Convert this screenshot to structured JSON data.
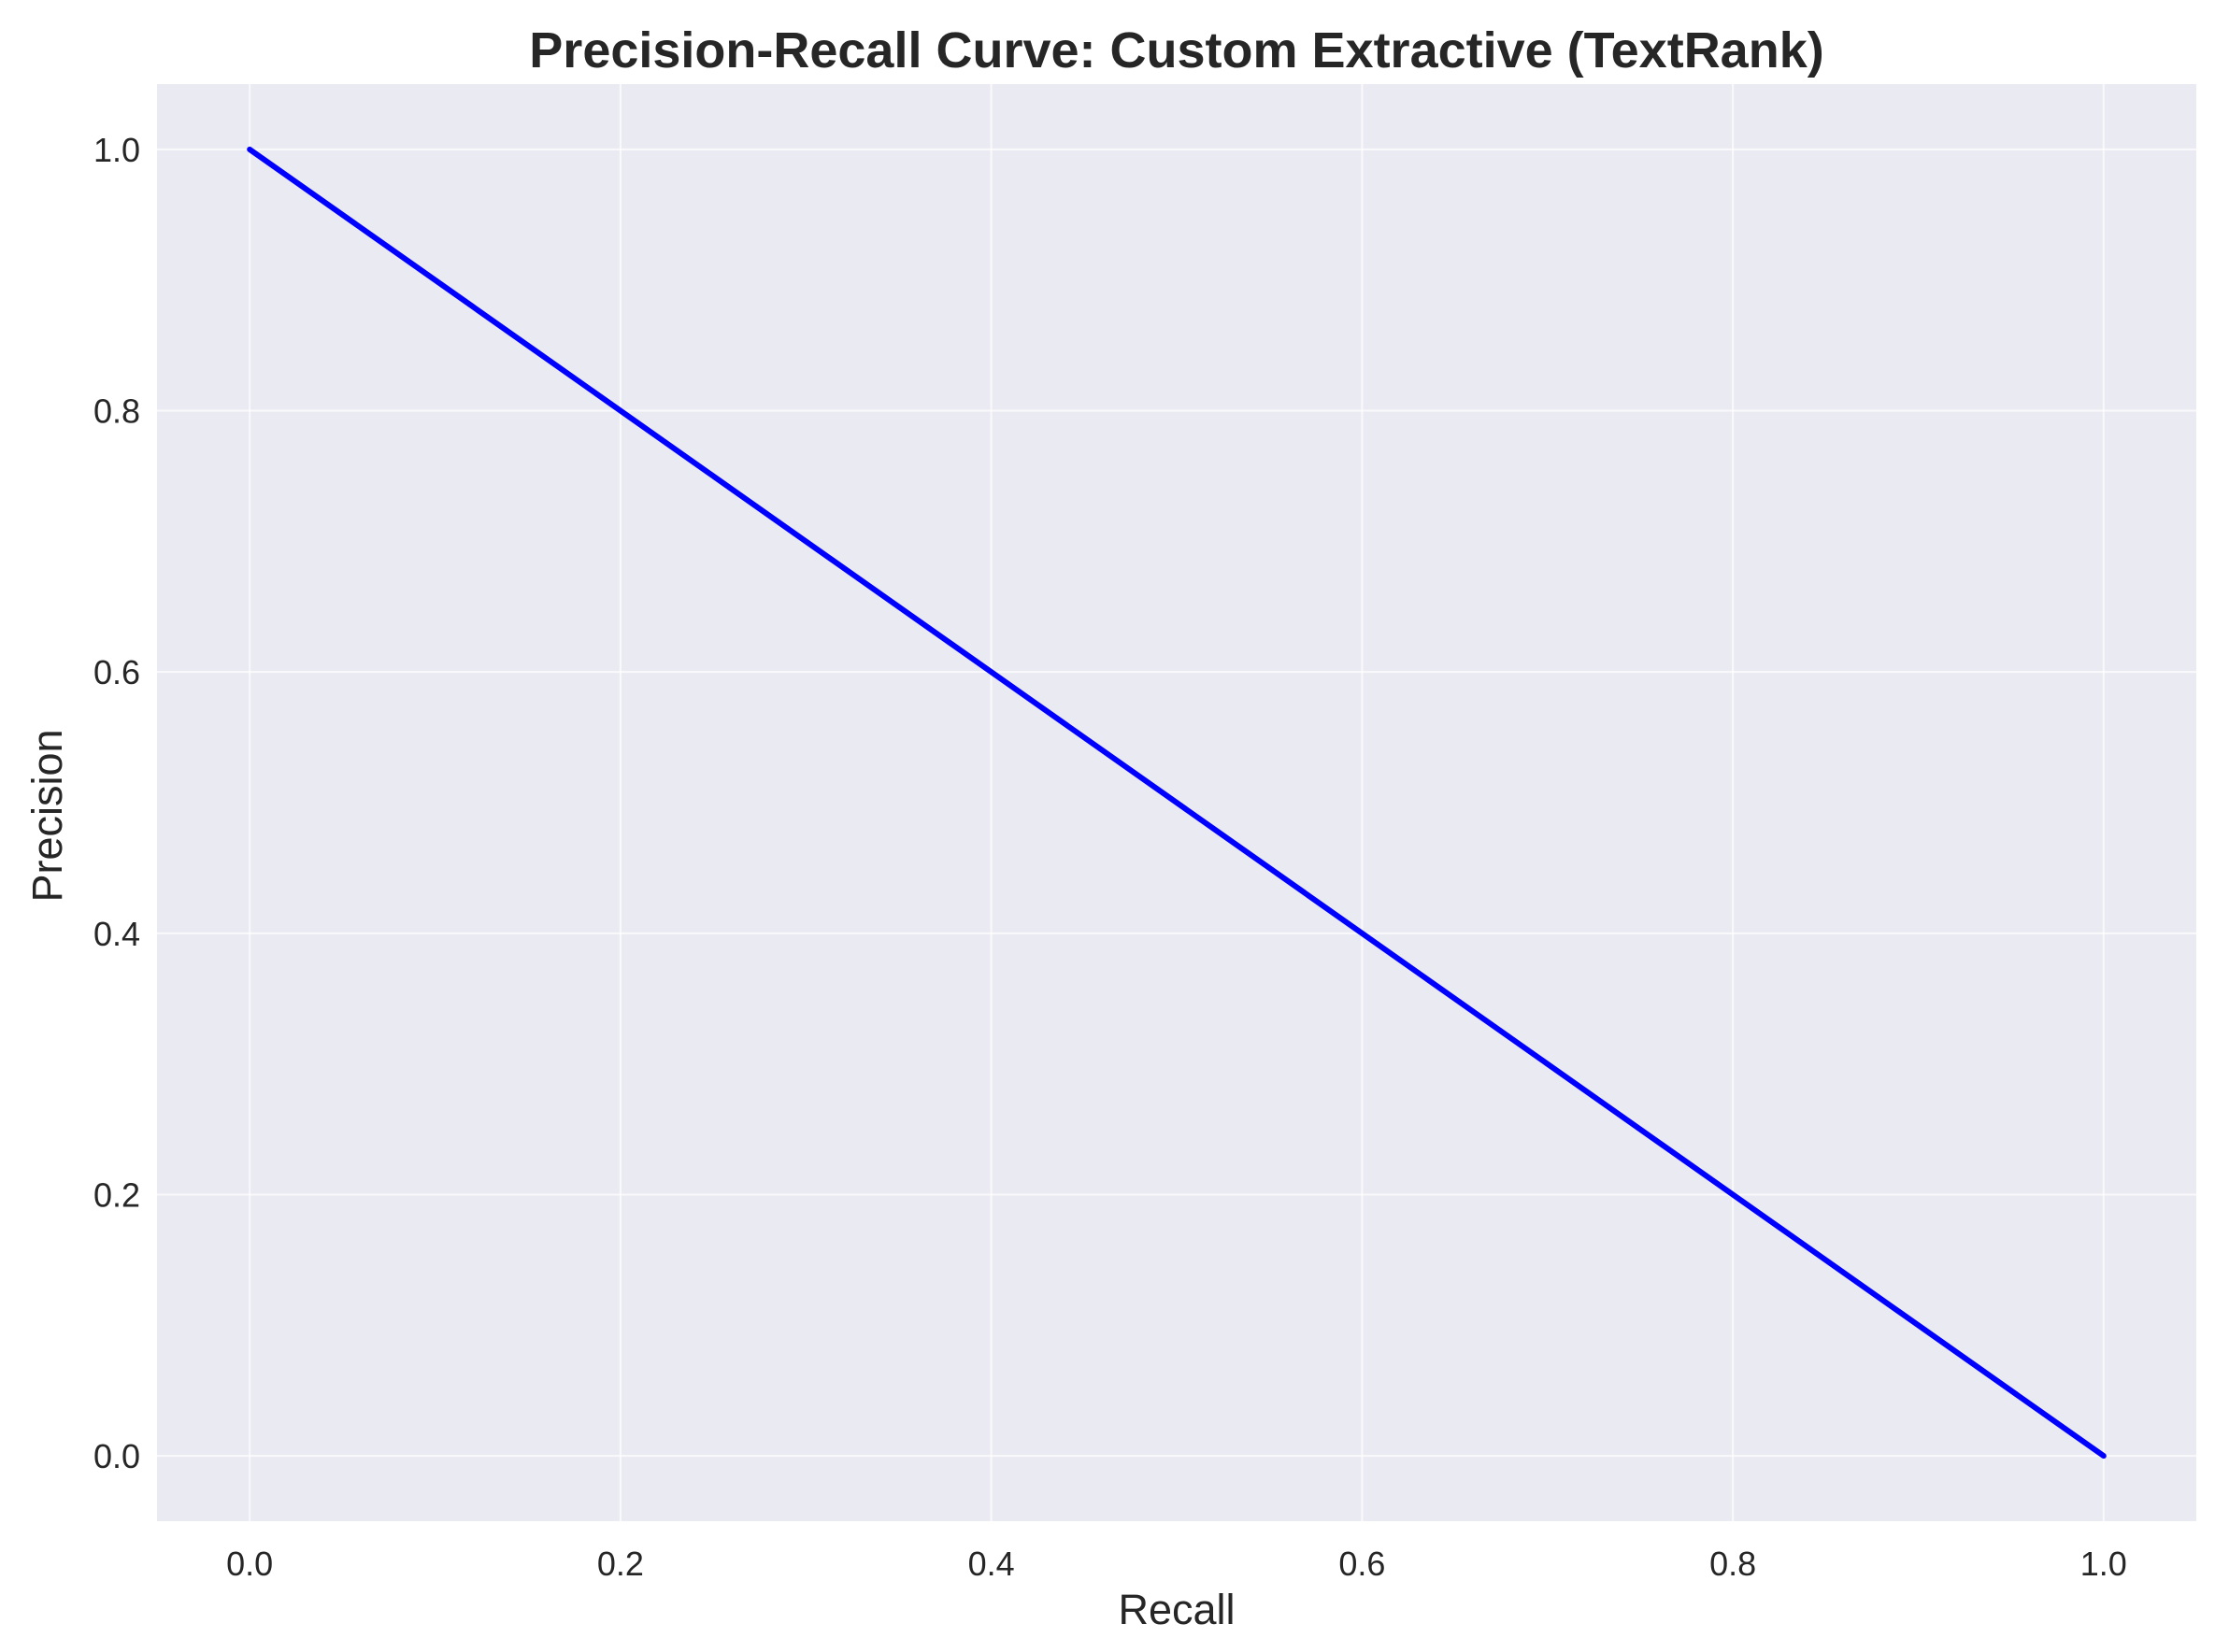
{
  "chart_data": {
    "type": "line",
    "title": "Precision-Recall Curve: Custom Extractive (TextRank)",
    "xlabel": "Recall",
    "ylabel": "Precision",
    "xlim": [
      -0.05,
      1.05
    ],
    "ylim": [
      -0.05,
      1.05
    ],
    "xticks": [
      "0.0",
      "0.2",
      "0.4",
      "0.6",
      "0.8",
      "1.0"
    ],
    "yticks": [
      "0.0",
      "0.2",
      "0.4",
      "0.6",
      "0.8",
      "1.0"
    ],
    "grid": true,
    "series": [
      {
        "x": [
          0.0,
          1.0
        ],
        "y": [
          1.0,
          0.0
        ],
        "color": "#0000ff"
      }
    ]
  },
  "colors": {
    "plot_background": "#eaeaf2",
    "line": "#0000ff"
  }
}
